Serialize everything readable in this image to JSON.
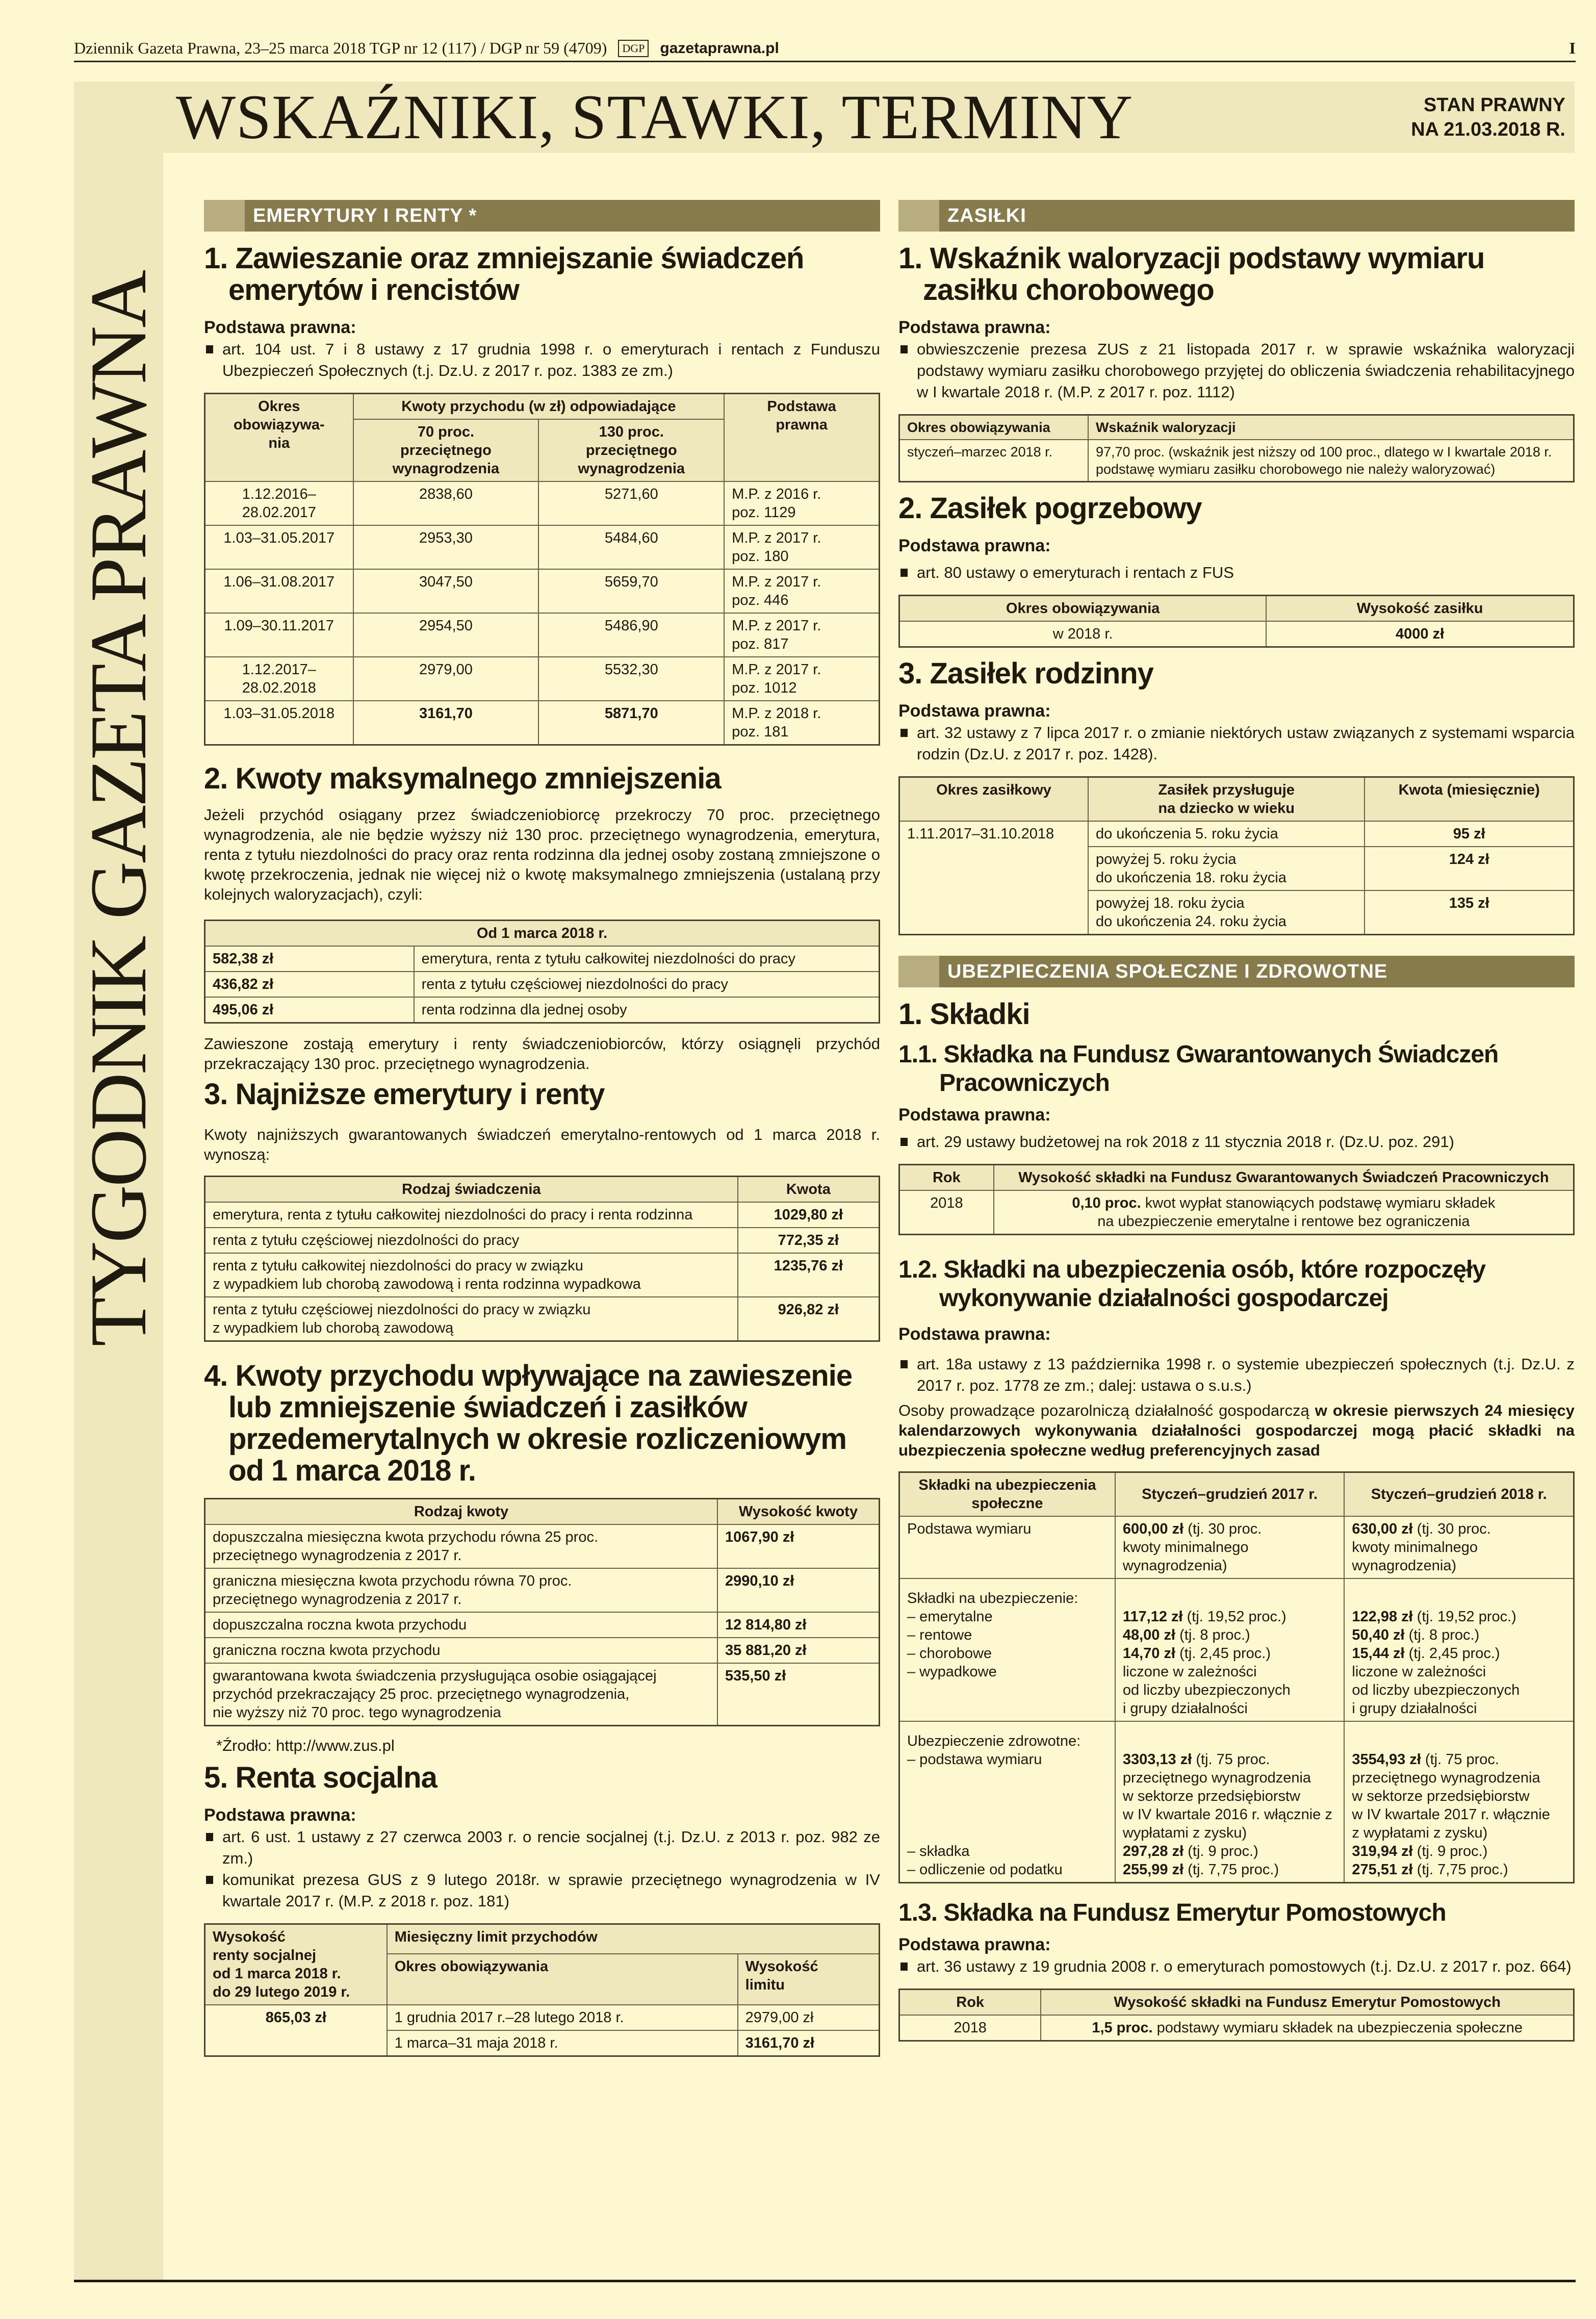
{
  "masthead": {
    "line": "Dziennik Gazeta Prawna, 23–25 marca 2018 TGP nr 12 (117) / DGP nr 59 (4709)",
    "logo": "DGP",
    "site": "gazetaprawna.pl",
    "page": "I"
  },
  "vertical_title": "TYGODNIK GAZETA PRAWNA",
  "title": "WSKAŹNIKI, STAWKI, TERMINY",
  "stan": {
    "line1": "STAN PRAWNY",
    "line2": "NA 21.03.2018 R."
  },
  "left": {
    "section": "EMERYTURY I RENTY *",
    "s1": {
      "title": "1. Zawieszanie oraz zmniejszanie świadczeń emerytów i rencistów",
      "pp": "Podstawa prawna:",
      "bullets": [
        "art. 104 ust. 7 i 8 ustawy z 17 grudnia 1998 r. o emeryturach i rentach z Funduszu Ubezpieczeń Społecznych (t.j. Dz.U. z 2017 r. poz. 1383 ze zm.)"
      ],
      "table": {
        "h_okres": "Okres\nobowiązywa-\nnia",
        "h_kwoty": "Kwoty przychodu (w zł) odpowiadające",
        "h_podstawa": "Podstawa\nprawna",
        "h_70": "70 proc.\nprzeciętnego\nwynagrodzenia",
        "h_130": "130 proc.\nprzeciętnego\nwynagrodzenia",
        "rows": [
          [
            "1.12.2016–\n28.02.2017",
            "2838,60",
            "5271,60",
            "M.P. z 2016 r.\npoz. 1129"
          ],
          [
            "1.03–31.05.2017",
            "2953,30",
            "5484,60",
            "M.P. z 2017 r.\npoz. 180"
          ],
          [
            "1.06–31.08.2017",
            "3047,50",
            "5659,70",
            "M.P. z 2017 r.\npoz. 446"
          ],
          [
            "1.09–30.11.2017",
            "2954,50",
            "5486,90",
            "M.P. z 2017 r.\npoz. 817"
          ],
          [
            "1.12.2017–\n28.02.2018",
            "2979,00",
            "5532,30",
            "M.P. z 2017 r.\npoz. 1012"
          ],
          [
            "1.03–31.05.2018",
            "3161,70",
            "5871,70",
            "M.P. z 2018 r.\npoz. 181"
          ]
        ]
      }
    },
    "s2": {
      "title": "2. Kwoty maksymalnego zmniejszenia",
      "para": "Jeżeli przychód osiągany przez świadczeniobiorcę przekroczy 70 proc. przeciętnego wynagrodzenia, ale nie będzie wyższy niż 130 proc. przeciętnego wynagrodzenia, emerytura, renta z tytułu niezdolności do pracy oraz renta rodzinna dla jednej osoby zostaną zmniejszone o kwotę przekroczenia, jednak nie więcej niż o kwotę maksymalnego zmniejszenia (ustalaną przy kolejnych waloryzacjach), czyli:",
      "table": {
        "header": "Od 1 marca 2018 r.",
        "rows": [
          [
            "582,38 zł",
            "emerytura, renta z tytułu całkowitej niezdolności do pracy"
          ],
          [
            "436,82 zł",
            "renta z tytułu częściowej niezdolności do pracy"
          ],
          [
            "495,06 zł",
            "renta rodzinna dla jednej osoby"
          ]
        ]
      },
      "para2": "Zawieszone zostają emerytury i renty świadczeniobiorców, którzy osiągnęli przychód przekraczający 130 proc. przeciętnego wynagrodzenia."
    },
    "s3": {
      "title": "3. Najniższe emerytury i renty",
      "para": "Kwoty najniższych gwarantowanych świadczeń emerytalno-rentowych od 1 marca 2018 r. wynoszą:",
      "table": {
        "h1": "Rodzaj świadczenia",
        "h2": "Kwota",
        "rows": [
          [
            "emerytura, renta z tytułu całkowitej niezdolności do pracy i renta rodzinna",
            "1029,80 zł"
          ],
          [
            "renta z tytułu częściowej niezdolności do pracy",
            "772,35 zł"
          ],
          [
            "renta z tytułu całkowitej niezdolności do pracy w związku\nz wypadkiem lub chorobą zawodową i renta rodzinna wypadkowa",
            "1235,76 zł"
          ],
          [
            "renta z tytułu częściowej niezdolności do pracy w związku\nz wypadkiem lub chorobą zawodową",
            "926,82 zł"
          ]
        ]
      }
    },
    "s4": {
      "title": "4. Kwoty przychodu wpływające na zawieszenie lub zmniejszenie świadczeń i zasiłków przedemerytalnych w okresie rozliczeniowym od 1 marca 2018 r.",
      "table": {
        "h1": "Rodzaj kwoty",
        "h2": "Wysokość kwoty",
        "rows": [
          [
            "dopuszczalna miesięczna kwota przychodu równa 25 proc.\nprzeciętnego wynagrodzenia z 2017 r.",
            "1067,90 zł"
          ],
          [
            "graniczna miesięczna kwota przychodu równa 70 proc.\nprzeciętnego wynagrodzenia z 2017 r.",
            "2990,10 zł"
          ],
          [
            "dopuszczalna roczna kwota przychodu",
            "12 814,80 zł"
          ],
          [
            "graniczna roczna kwota przychodu",
            "35 881,20 zł"
          ],
          [
            "gwarantowana kwota świadczenia przysługująca osobie osiągającej\nprzychód przekraczający 25 proc. przeciętnego wynagrodzenia,\nnie wyższy niż 70 proc. tego wynagrodzenia",
            "535,50 zł"
          ]
        ]
      },
      "source": "*Źrodło: http://www.zus.pl"
    },
    "s5": {
      "title": "5. Renta socjalna",
      "pp": "Podstawa prawna:",
      "bullets": [
        "art. 6 ust. 1 ustawy z 27 czerwca 2003 r. o rencie socjalnej (t.j. Dz.U. z 2013 r. poz. 982 ze zm.)",
        "komunikat prezesa GUS z 9 lutego 2018r. w sprawie przeciętnego wynagrodzenia w IV kwartale 2017 r. (M.P. z 2018 r. poz. 181)"
      ],
      "table": {
        "h_wys": "Wysokość\nrenty socjalnej\nod 1 marca 2018 r.\ndo 29 lutego 2019 r.",
        "h_limit": "Miesięczny limit przychodów",
        "h_okres": "Okres obowiązywania",
        "h_wlim": "Wysokość\nlimitu",
        "kwota": "865,03 zł",
        "rows": [
          [
            "1 grudnia 2017 r.–28 lutego 2018 r.",
            "2979,00 zł"
          ],
          [
            "1 marca–31 maja 2018 r.",
            "3161,70 zł"
          ]
        ]
      }
    }
  },
  "right": {
    "section": "ZASIŁKI",
    "s1": {
      "title": "1. Wskaźnik waloryzacji podstawy wymiaru zasiłku chorobowego",
      "pp": "Podstawa prawna:",
      "bullets": [
        "obwieszczenie prezesa ZUS z 21 listopada 2017 r. w sprawie wskaźnika waloryzacji podstawy wymiaru zasiłku chorobowego przyjętej do obliczenia świadczenia rehabilitacyjnego w I kwartale 2018 r. (M.P. z 2017 r. poz. 1112)"
      ],
      "table": {
        "h1": "Okres obowiązywania",
        "h2": "Wskaźnik waloryzacji",
        "rows": [
          [
            "styczeń–marzec 2018 r.",
            "97,70 proc. (wskaźnik jest niższy od 100 proc., dlatego w I kwartale 2018 r. podstawę wymiaru zasiłku chorobowego nie należy waloryzować)"
          ]
        ]
      }
    },
    "s2": {
      "title": "2. Zasiłek pogrzebowy",
      "pp": "Podstawa prawna:",
      "bullets": [
        "art. 80 ustawy o emeryturach i rentach z FUS"
      ],
      "table": {
        "h1": "Okres obowiązywania",
        "h2": "Wysokość zasiłku",
        "rows": [
          [
            "w 2018 r.",
            "4000 zł"
          ]
        ]
      }
    },
    "s3": {
      "title": "3. Zasiłek rodzinny",
      "pp": "Podstawa prawna:",
      "bullets": [
        "art. 32 ustawy z 7 lipca 2017 r. o zmianie niektórych ustaw związanych z systemami wsparcia rodzin (Dz.U. z 2017 r. poz. 1428)."
      ],
      "table": {
        "h1": "Okres zasiłkowy",
        "h2": "Zasiłek przysługuje\nna dziecko w wieku",
        "h3": "Kwota (miesięcznie)",
        "okres": "1.11.2017–31.10.2018",
        "rows": [
          [
            "do ukończenia 5. roku życia",
            "95 zł"
          ],
          [
            "powyżej 5. roku życia\ndo ukończenia 18. roku życia",
            "124 zł"
          ],
          [
            "powyżej 18. roku życia\ndo ukończenia 24. roku życia",
            "135 zł"
          ]
        ]
      }
    },
    "section2": "UBEZPIECZENIA SPOŁECZNE I ZDROWOTNE",
    "skladki_title": "1. Składki",
    "s11": {
      "title": "1.1. Składka na Fundusz Gwarantowanych Świadczeń Pracowniczych",
      "pp": "Podstawa prawna:",
      "bullets": [
        "art. 29 ustawy budżetowej na rok 2018 z 11 stycznia 2018 r. (Dz.U. poz. 291)"
      ],
      "table": {
        "h1": "Rok",
        "h2": "Wysokość składki na Fundusz Gwarantowanych Świadczeń Pracowniczych",
        "rok": "2018",
        "bold": "0,10 proc.",
        "text": " kwot wypłat stanowiących podstawę wymiaru składek\nna ubezpieczenie emerytalne i rentowe bez ograniczenia"
      }
    },
    "s12": {
      "title": "1.2. Składki na ubezpieczenia osób, które rozpoczęły wykonywanie działalności gospodarczej",
      "pp": "Podstawa prawna:",
      "bullets": [
        "art. 18a ustawy z 13 października 1998 r. o systemie ubezpieczeń społecznych (t.j. Dz.U. z 2017 r. poz. 1778 ze zm.; dalej: ustawa o s.u.s.)"
      ],
      "para_a": "Osoby prowadzące pozarolniczą działalność gospodarczą ",
      "para_b": "w okresie pierwszych 24 miesięcy kalendarzowych wykonywania działalności gospodarczej mogą płacić składki na ubezpieczenia społeczne według preferencyjnych zasad",
      "table": {
        "h1": "Składki na ubezpieczenia\nspołeczne",
        "h2": "Styczeń–grudzień 2017 r.",
        "h3": "Styczeń–grudzień 2018 r.",
        "r1": {
          "label": "Podstawa wymiaru",
          "a_b": "600,00 zł",
          "a_t": " (tj. 30 proc.\nkwoty minimalnego\nwynagrodzenia)",
          "c_b": "630,00 zł",
          "c_t": " (tj. 30 proc.\nkwoty minimalnego\nwynagrodzenia)"
        },
        "r2": {
          "label": "Składki na ubezpieczenie:\n– emerytalne\n– rentowe\n– chorobowe\n– wypadkowe",
          "a": [
            [
              "117,12 zł",
              " (tj. 19,52 proc.)"
            ],
            [
              "48,00 zł",
              " (tj. 8 proc.)"
            ],
            [
              "14,70 zł",
              " (tj. 2,45 proc.)"
            ]
          ],
          "a_note": "liczone w zależności\nod liczby ubezpieczonych\ni grupy działalności",
          "c": [
            [
              "122,98 zł",
              " (tj. 19,52 proc.)"
            ],
            [
              "50,40 zł",
              " (tj. 8 proc.)"
            ],
            [
              "15,44 zł",
              " (tj. 2,45 proc.)"
            ]
          ],
          "c_note": "liczone w zależności\nod liczby ubezpieczonych\ni grupy działalności"
        },
        "r3": {
          "label": "Ubezpieczenie zdrowotne:\n– podstawa wymiaru\n\n\n\n\n– składka\n– odliczenie od podatku",
          "a": [
            [
              "3303,13 zł",
              " (tj. 75 proc. przeciętnego wynagrodzenia\nw sektorze przedsiębiorstw\nw IV kwartale 2016 r. włącznie z wypłatami z zysku)"
            ],
            [
              "297,28 zł",
              " (tj. 9 proc.)"
            ],
            [
              "255,99 zł",
              " (tj. 7,75 proc.)"
            ]
          ],
          "c": [
            [
              "3554,93 zł",
              " (tj. 75 proc. przeciętnego wynagrodzenia\nw sektorze przedsiębiorstw\nw IV kwartale 2017 r. włącznie\nz wypłatami z zysku)"
            ],
            [
              "319,94 zł",
              " (tj. 9 proc.)"
            ],
            [
              "275,51 zł",
              " (tj. 7,75 proc.)"
            ]
          ]
        }
      }
    },
    "s13": {
      "title": "1.3. Składka na Fundusz Emerytur Pomostowych",
      "pp": "Podstawa prawna:",
      "bullets": [
        "art. 36 ustawy z 19 grudnia 2008 r. o emeryturach pomostowych (t.j. Dz.U. z 2017 r. poz. 664)"
      ],
      "table": {
        "h1": "Rok",
        "h2": "Wysokość składki na Fundusz Emerytur Pomostowych",
        "rok": "2018",
        "bold": "1,5 proc.",
        "text": " podstawy wymiaru składek na ubezpieczenia społeczne"
      }
    }
  },
  "colors": {
    "background": "#fdf8cf",
    "band": "#efe8bd",
    "section_bar": "#877b4c",
    "section_square": "#b7ad80"
  }
}
